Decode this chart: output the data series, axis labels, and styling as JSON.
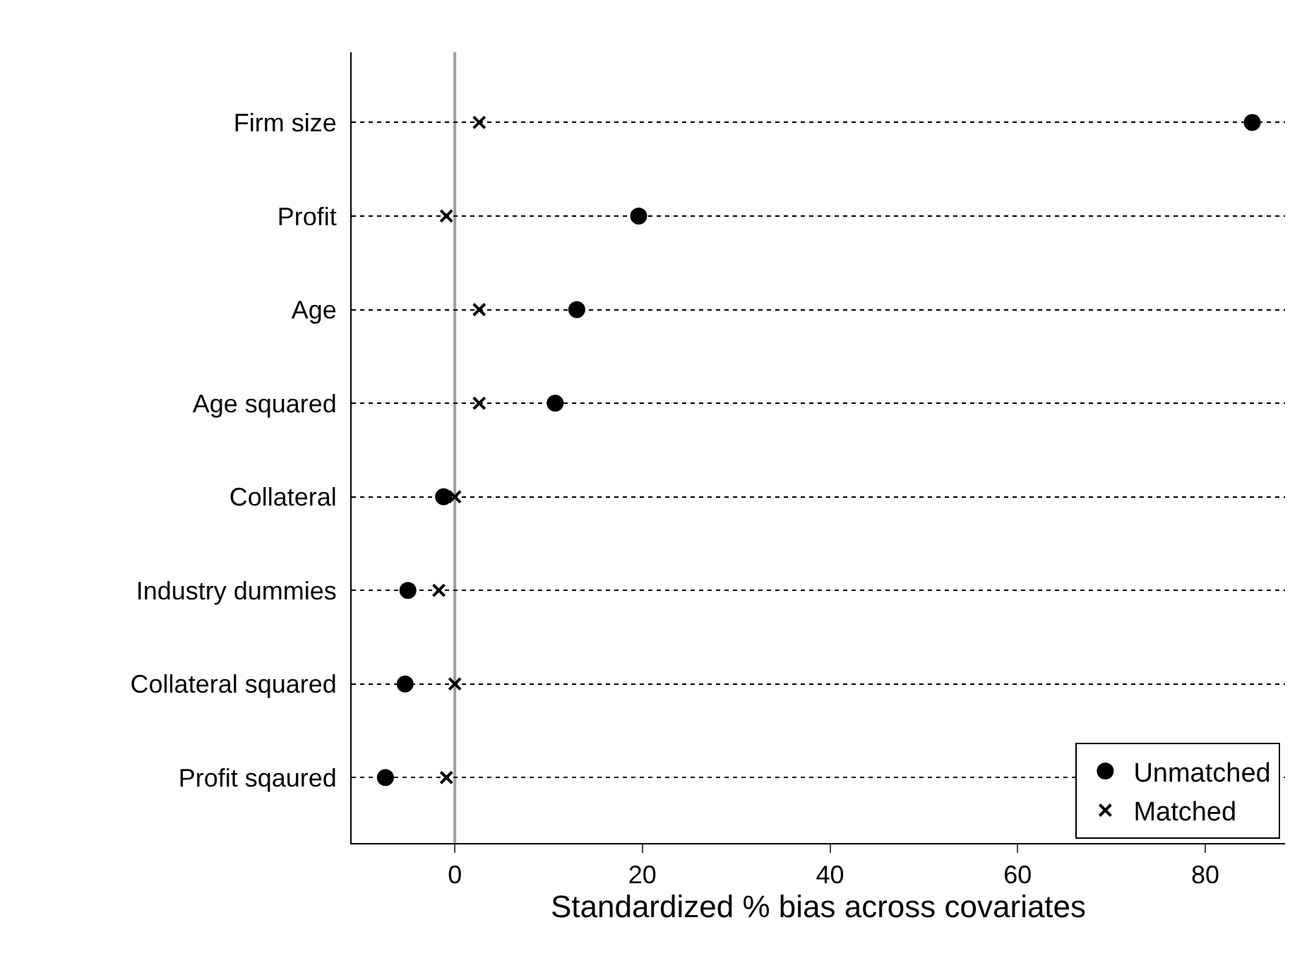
{
  "chart_data": {
    "type": "scatter",
    "xlabel": "Standardized % bias across covariates",
    "categories": [
      "Firm size",
      "Profit",
      "Age",
      "Age squared",
      "Collateral",
      "Industry dummies",
      "Collateral squared",
      "Profit sqaured"
    ],
    "series": [
      {
        "name": "Unmatched",
        "color": "#000000",
        "marker": "circle",
        "values": [
          85.0,
          19.6,
          13.0,
          10.7,
          -1.2,
          -5.0,
          -5.3,
          -7.4
        ]
      },
      {
        "name": "Matched",
        "color": "#000000",
        "marker": "cross",
        "values": [
          2.6,
          -0.9,
          2.6,
          2.6,
          0.0,
          -1.7,
          0.0,
          -0.9
        ]
      }
    ],
    "xlim": [
      -11,
      88.5
    ],
    "xticks": [
      0,
      20,
      40,
      60,
      80
    ],
    "grid": "y",
    "ref_lines": [
      {
        "axis": "x",
        "value": 0,
        "color": "#a0a0a0"
      }
    ],
    "legend": "bottom right",
    "orientation": "horizontal"
  }
}
